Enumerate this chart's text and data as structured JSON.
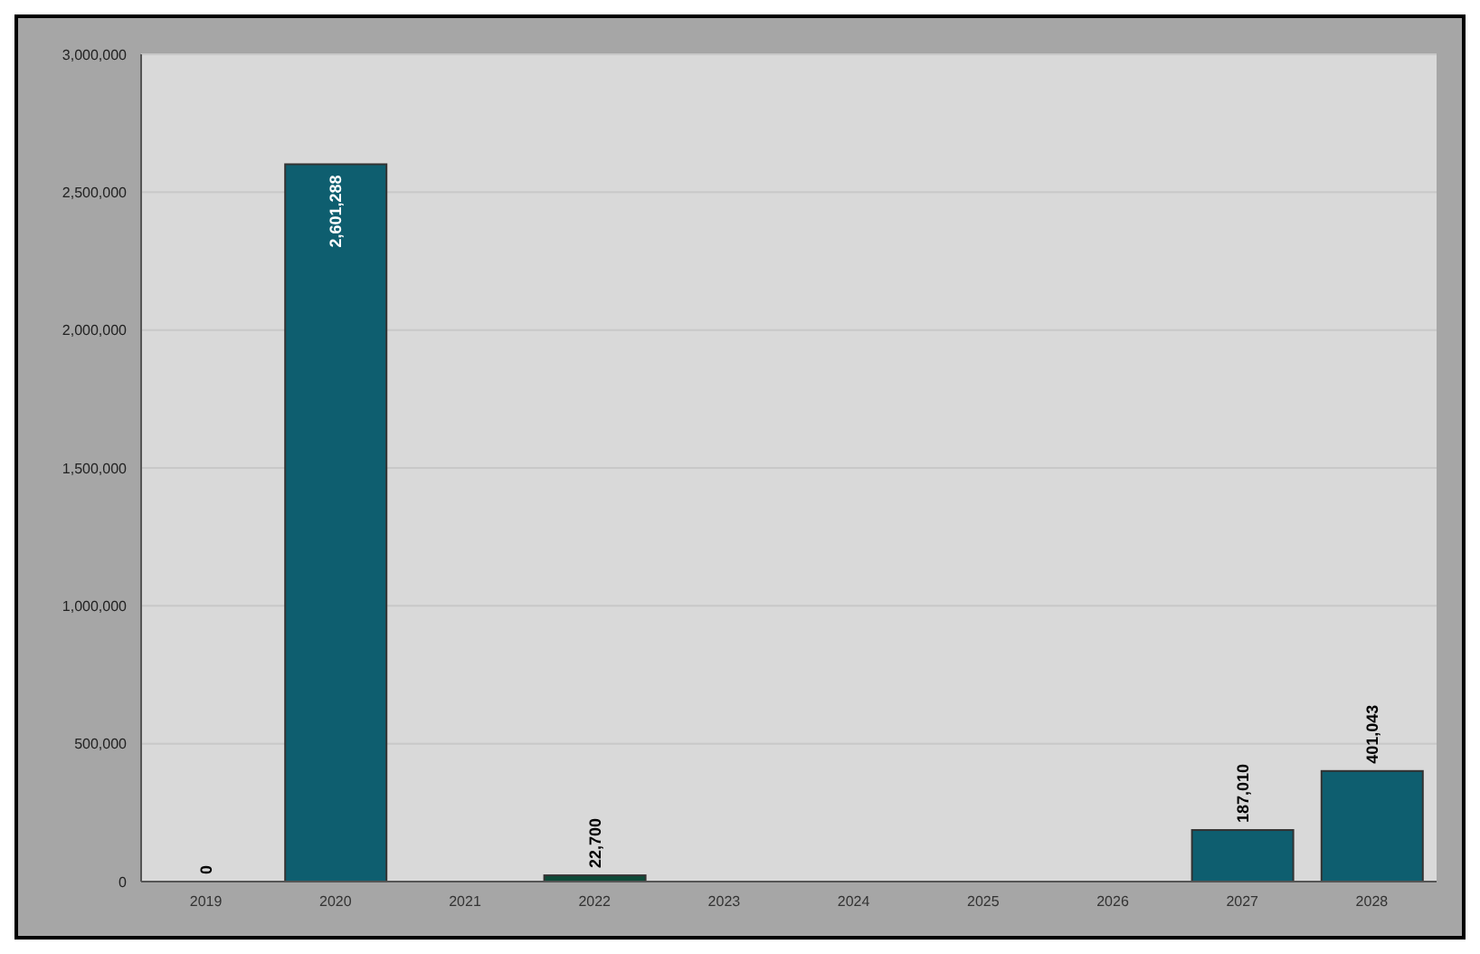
{
  "chart_data": {
    "type": "bar",
    "categories": [
      "2019",
      "2020",
      "2021",
      "2022",
      "2023",
      "2024",
      "2025",
      "2026",
      "2027",
      "2028"
    ],
    "values": [
      0,
      2601288,
      null,
      22700,
      null,
      null,
      null,
      null,
      187010,
      401043
    ],
    "colors": [
      "#0e5e6f",
      "#0e5e6f",
      "#0e5e6f",
      "#0d4a38",
      "#0e5e6f",
      "#0e5e6f",
      "#0e5e6f",
      "#0e5e6f",
      "#0e5e6f",
      "#0e5e6f"
    ],
    "value_labels": [
      "0",
      "2,601,288",
      null,
      "22,700",
      null,
      null,
      null,
      null,
      "187,010",
      "401,043"
    ],
    "ylim": [
      0,
      3000000
    ],
    "yticks": [
      {
        "value": 0,
        "label": "0"
      },
      {
        "value": 500000,
        "label": "500,000"
      },
      {
        "value": 1000000,
        "label": "1,000,000"
      },
      {
        "value": 1500000,
        "label": "1,500,000"
      },
      {
        "value": 2000000,
        "label": "2,000,000"
      },
      {
        "value": 2500000,
        "label": "2,500,000"
      },
      {
        "value": 3000000,
        "label": "3,000,000"
      }
    ],
    "grid": "y",
    "legend": false
  }
}
